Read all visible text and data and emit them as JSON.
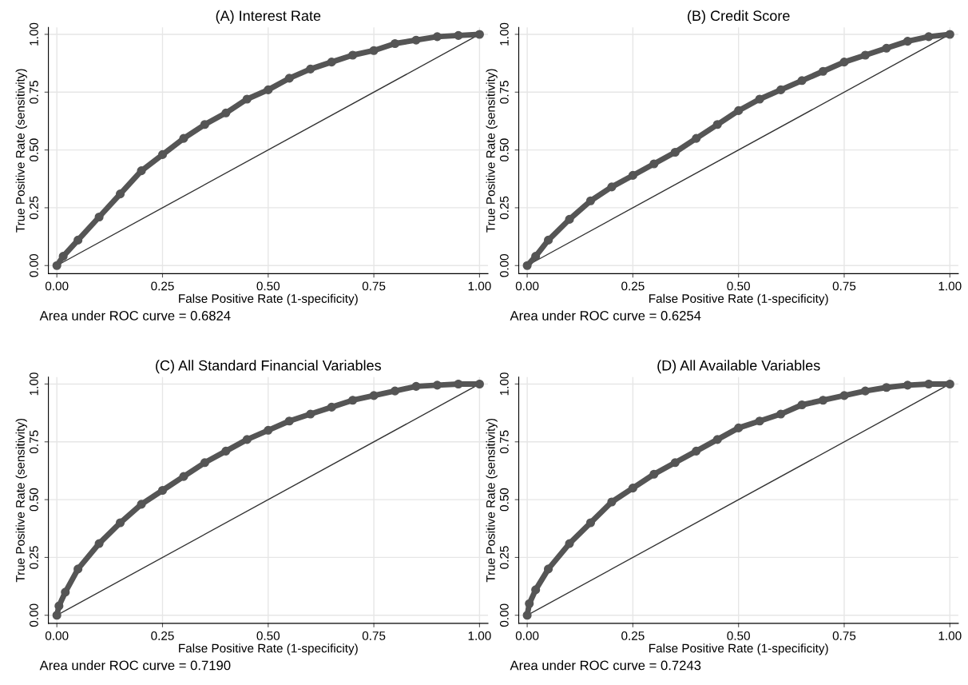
{
  "chart_data": [
    {
      "type": "line",
      "title": "(A) Interest Rate",
      "xlabel": "False Positive Rate (1-specificity)",
      "ylabel": "True Positive Rate (sensitivity)",
      "annotations": [
        "Area under ROC curve = 0.6824"
      ],
      "xlim": [
        -0.02,
        1.02
      ],
      "ylim": [
        -0.035,
        1.03
      ],
      "xticks": [
        {
          "value": 0,
          "label": "0.00"
        },
        {
          "value": 0.25,
          "label": "0.25"
        },
        {
          "value": 0.5,
          "label": "0.50"
        },
        {
          "value": 0.75,
          "label": "0.75"
        },
        {
          "value": 1,
          "label": "1.00"
        }
      ],
      "yticks": [
        {
          "value": 0,
          "label": "0.00"
        },
        {
          "value": 0.25,
          "label": "0.25"
        },
        {
          "value": 0.5,
          "label": "0.50"
        },
        {
          "value": 0.75,
          "label": "0.75"
        },
        {
          "value": 1,
          "label": "1.00"
        }
      ],
      "grid": true,
      "series": [
        {
          "color": "#555555",
          "marker": "circle",
          "x": [
            0,
            0.015,
            0.05,
            0.1,
            0.15,
            0.2,
            0.25,
            0.3,
            0.35,
            0.4,
            0.45,
            0.5,
            0.55,
            0.6,
            0.65,
            0.7,
            0.75,
            0.8,
            0.85,
            0.9,
            0.95,
            1
          ],
          "values": [
            0,
            0.04,
            0.11,
            0.21,
            0.31,
            0.41,
            0.48,
            0.55,
            0.61,
            0.66,
            0.72,
            0.76,
            0.81,
            0.85,
            0.88,
            0.91,
            0.93,
            0.96,
            0.975,
            0.99,
            0.995,
            1
          ]
        },
        {
          "color": "#333333",
          "marker": "none",
          "x": [
            0,
            1
          ],
          "values": [
            0,
            1
          ]
        }
      ]
    },
    {
      "type": "line",
      "title": "(B) Credit Score",
      "xlabel": "False Positive Rate (1-specificity)",
      "ylabel": "True Positive Rate (sensitivity)",
      "annotations": [
        "Area under ROC curve = 0.6254"
      ],
      "xlim": [
        -0.02,
        1.02
      ],
      "ylim": [
        -0.035,
        1.03
      ],
      "xticks": [
        {
          "value": 0,
          "label": "0.00"
        },
        {
          "value": 0.25,
          "label": "0.25"
        },
        {
          "value": 0.5,
          "label": "0.50"
        },
        {
          "value": 0.75,
          "label": "0.75"
        },
        {
          "value": 1,
          "label": "1.00"
        }
      ],
      "yticks": [
        {
          "value": 0,
          "label": "0.00"
        },
        {
          "value": 0.25,
          "label": "0.25"
        },
        {
          "value": 0.5,
          "label": "0.50"
        },
        {
          "value": 0.75,
          "label": "0.75"
        },
        {
          "value": 1,
          "label": "1.00"
        }
      ],
      "grid": true,
      "series": [
        {
          "color": "#555555",
          "marker": "circle",
          "x": [
            0,
            0.02,
            0.05,
            0.1,
            0.15,
            0.2,
            0.25,
            0.3,
            0.35,
            0.4,
            0.45,
            0.5,
            0.55,
            0.6,
            0.65,
            0.7,
            0.75,
            0.8,
            0.85,
            0.9,
            0.95,
            1
          ],
          "values": [
            0,
            0.04,
            0.11,
            0.2,
            0.28,
            0.34,
            0.39,
            0.44,
            0.49,
            0.55,
            0.61,
            0.67,
            0.72,
            0.76,
            0.8,
            0.84,
            0.88,
            0.91,
            0.94,
            0.97,
            0.99,
            1
          ]
        },
        {
          "color": "#333333",
          "marker": "none",
          "x": [
            0,
            1
          ],
          "values": [
            0,
            1
          ]
        }
      ]
    },
    {
      "type": "line",
      "title": "(C) All Standard Financial Variables",
      "xlabel": "False Positive Rate (1-specificity)",
      "ylabel": "True Positive Rate (sensitivity)",
      "annotations": [
        "Area under ROC curve = 0.7190"
      ],
      "xlim": [
        -0.02,
        1.02
      ],
      "ylim": [
        -0.035,
        1.03
      ],
      "xticks": [
        {
          "value": 0,
          "label": "0.00"
        },
        {
          "value": 0.25,
          "label": "0.25"
        },
        {
          "value": 0.5,
          "label": "0.50"
        },
        {
          "value": 0.75,
          "label": "0.75"
        },
        {
          "value": 1,
          "label": "1.00"
        }
      ],
      "yticks": [
        {
          "value": 0,
          "label": "0.00"
        },
        {
          "value": 0.25,
          "label": "0.25"
        },
        {
          "value": 0.5,
          "label": "0.50"
        },
        {
          "value": 0.75,
          "label": "0.75"
        },
        {
          "value": 1,
          "label": "1.00"
        }
      ],
      "grid": true,
      "series": [
        {
          "color": "#555555",
          "marker": "circle",
          "x": [
            0,
            0.005,
            0.02,
            0.05,
            0.1,
            0.15,
            0.2,
            0.25,
            0.3,
            0.35,
            0.4,
            0.45,
            0.5,
            0.55,
            0.6,
            0.65,
            0.7,
            0.75,
            0.8,
            0.85,
            0.9,
            0.95,
            1
          ],
          "values": [
            0,
            0.04,
            0.1,
            0.2,
            0.31,
            0.4,
            0.48,
            0.54,
            0.6,
            0.66,
            0.71,
            0.76,
            0.8,
            0.84,
            0.87,
            0.9,
            0.93,
            0.95,
            0.97,
            0.99,
            0.995,
            1,
            1
          ]
        },
        {
          "color": "#333333",
          "marker": "none",
          "x": [
            0,
            1
          ],
          "values": [
            0,
            1
          ]
        }
      ]
    },
    {
      "type": "line",
      "title": "(D) All Available Variables",
      "xlabel": "False Positive Rate (1-specificity)",
      "ylabel": "True Positive Rate (sensitivity)",
      "annotations": [
        "Area under ROC curve = 0.7243"
      ],
      "xlim": [
        -0.02,
        1.02
      ],
      "ylim": [
        -0.035,
        1.03
      ],
      "xticks": [
        {
          "value": 0,
          "label": "0.00"
        },
        {
          "value": 0.25,
          "label": "0.25"
        },
        {
          "value": 0.5,
          "label": "0.50"
        },
        {
          "value": 0.75,
          "label": "0.75"
        },
        {
          "value": 1,
          "label": "1.00"
        }
      ],
      "yticks": [
        {
          "value": 0,
          "label": "0.00"
        },
        {
          "value": 0.25,
          "label": "0.25"
        },
        {
          "value": 0.5,
          "label": "0.50"
        },
        {
          "value": 0.75,
          "label": "0.75"
        },
        {
          "value": 1,
          "label": "1.00"
        }
      ],
      "grid": true,
      "series": [
        {
          "color": "#555555",
          "marker": "circle",
          "x": [
            0,
            0.005,
            0.02,
            0.05,
            0.1,
            0.15,
            0.2,
            0.25,
            0.3,
            0.35,
            0.4,
            0.45,
            0.5,
            0.55,
            0.6,
            0.65,
            0.7,
            0.75,
            0.8,
            0.85,
            0.9,
            0.95,
            1
          ],
          "values": [
            0,
            0.05,
            0.11,
            0.2,
            0.31,
            0.4,
            0.49,
            0.55,
            0.61,
            0.66,
            0.71,
            0.76,
            0.81,
            0.84,
            0.87,
            0.91,
            0.93,
            0.95,
            0.97,
            0.985,
            0.995,
            1,
            1
          ]
        },
        {
          "color": "#333333",
          "marker": "none",
          "x": [
            0,
            1
          ],
          "values": [
            0,
            1
          ]
        }
      ]
    }
  ]
}
